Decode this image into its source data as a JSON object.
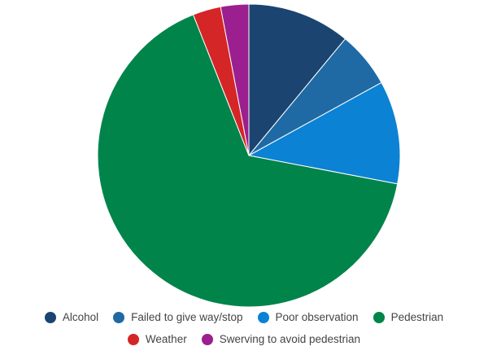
{
  "chart_data": {
    "type": "pie",
    "title": "",
    "categories": [
      "Alcohol",
      "Failed to give way/stop",
      "Poor observation",
      "Pedestrian",
      "Weather",
      "Swerving to avoid pedestrian"
    ],
    "values": [
      11,
      6,
      11,
      66,
      3,
      3
    ],
    "colors": [
      "#1b4570",
      "#1f6aa5",
      "#0b82d4",
      "#00844a",
      "#d42626",
      "#9c1f8f"
    ],
    "legend_position": "bottom",
    "start_angle": "top, clockwise"
  }
}
